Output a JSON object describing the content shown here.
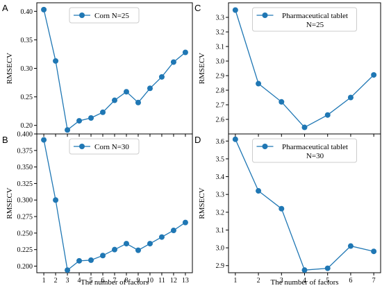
{
  "colors": {
    "series": "#1f77b4",
    "axis": "#000000",
    "legend_border": "#cccccc"
  },
  "chart_data": [
    {
      "type": "line",
      "panel_label": "A",
      "legend": [
        "Corn N=25"
      ],
      "legend_position": "top-center",
      "xlabel": "",
      "ylabel": "RMSECV",
      "x": [
        1,
        2,
        3,
        4,
        5,
        6,
        7,
        8,
        9,
        10,
        11,
        12,
        13
      ],
      "x_ticks": [],
      "values": [
        0.403,
        0.313,
        0.192,
        0.208,
        0.213,
        0.223,
        0.244,
        0.259,
        0.24,
        0.265,
        0.285,
        0.311,
        0.328
      ],
      "ylim": [
        0.185,
        0.415
      ],
      "y_ticks": [
        "0.20",
        "0.25",
        "0.30",
        "0.35",
        "0.40"
      ],
      "y_tick_values": [
        0.2,
        0.25,
        0.3,
        0.35,
        0.4
      ]
    },
    {
      "type": "line",
      "panel_label": "C",
      "legend": [
        "Pharmaceutical tablet",
        "N=25"
      ],
      "legend_position": "top-center",
      "xlabel": "",
      "ylabel": "RMSECV",
      "x": [
        1,
        2,
        3,
        4,
        5,
        6,
        7
      ],
      "x_ticks": [],
      "values": [
        3.35,
        2.845,
        2.72,
        2.545,
        2.63,
        2.75,
        2.905
      ],
      "ylim": [
        2.5,
        3.4
      ],
      "y_ticks": [
        "2.6",
        "2.7",
        "2.8",
        "2.9",
        "3.0",
        "3.1",
        "3.2",
        "3.3"
      ],
      "y_tick_values": [
        2.6,
        2.7,
        2.8,
        2.9,
        3.0,
        3.1,
        3.2,
        3.3
      ]
    },
    {
      "type": "line",
      "panel_label": "B",
      "legend": [
        "Corn N=30"
      ],
      "legend_position": "top-center",
      "xlabel": "The number of factors",
      "ylabel": "RMSECV",
      "x": [
        1,
        2,
        3,
        4,
        5,
        6,
        7,
        8,
        9,
        10,
        11,
        12,
        13
      ],
      "x_ticks": [
        "1",
        "2",
        "3",
        "4",
        "5",
        "6",
        "7",
        "8",
        "9",
        "10",
        "11",
        "12",
        "13"
      ],
      "values": [
        0.391,
        0.3,
        0.194,
        0.208,
        0.209,
        0.216,
        0.225,
        0.234,
        0.224,
        0.234,
        0.244,
        0.254,
        0.266
      ],
      "ylim": [
        0.19,
        0.4
      ],
      "y_ticks": [
        "0.200",
        "0.225",
        "0.250",
        "0.275",
        "0.300",
        "0.325",
        "0.350",
        "0.375",
        "0.400"
      ],
      "y_tick_values": [
        0.2,
        0.225,
        0.25,
        0.275,
        0.3,
        0.325,
        0.35,
        0.375,
        0.4
      ]
    },
    {
      "type": "line",
      "panel_label": "D",
      "legend": [
        "Pharmaceutical tablet",
        "N=30"
      ],
      "legend_position": "top-center",
      "xlabel": "The number of factors",
      "ylabel": "RMSECV",
      "x": [
        1,
        2,
        3,
        4,
        5,
        6,
        7
      ],
      "x_ticks": [
        "1",
        "2",
        "3",
        "4",
        "5",
        "6",
        "7"
      ],
      "values": [
        3.61,
        3.32,
        3.22,
        2.875,
        2.885,
        3.01,
        2.98
      ],
      "ylim": [
        2.86,
        3.64
      ],
      "y_ticks": [
        "2.9",
        "3.0",
        "3.1",
        "3.2",
        "3.3",
        "3.4",
        "3.5",
        "3.6"
      ],
      "y_tick_values": [
        2.9,
        3.0,
        3.1,
        3.2,
        3.3,
        3.4,
        3.5,
        3.6
      ]
    }
  ]
}
